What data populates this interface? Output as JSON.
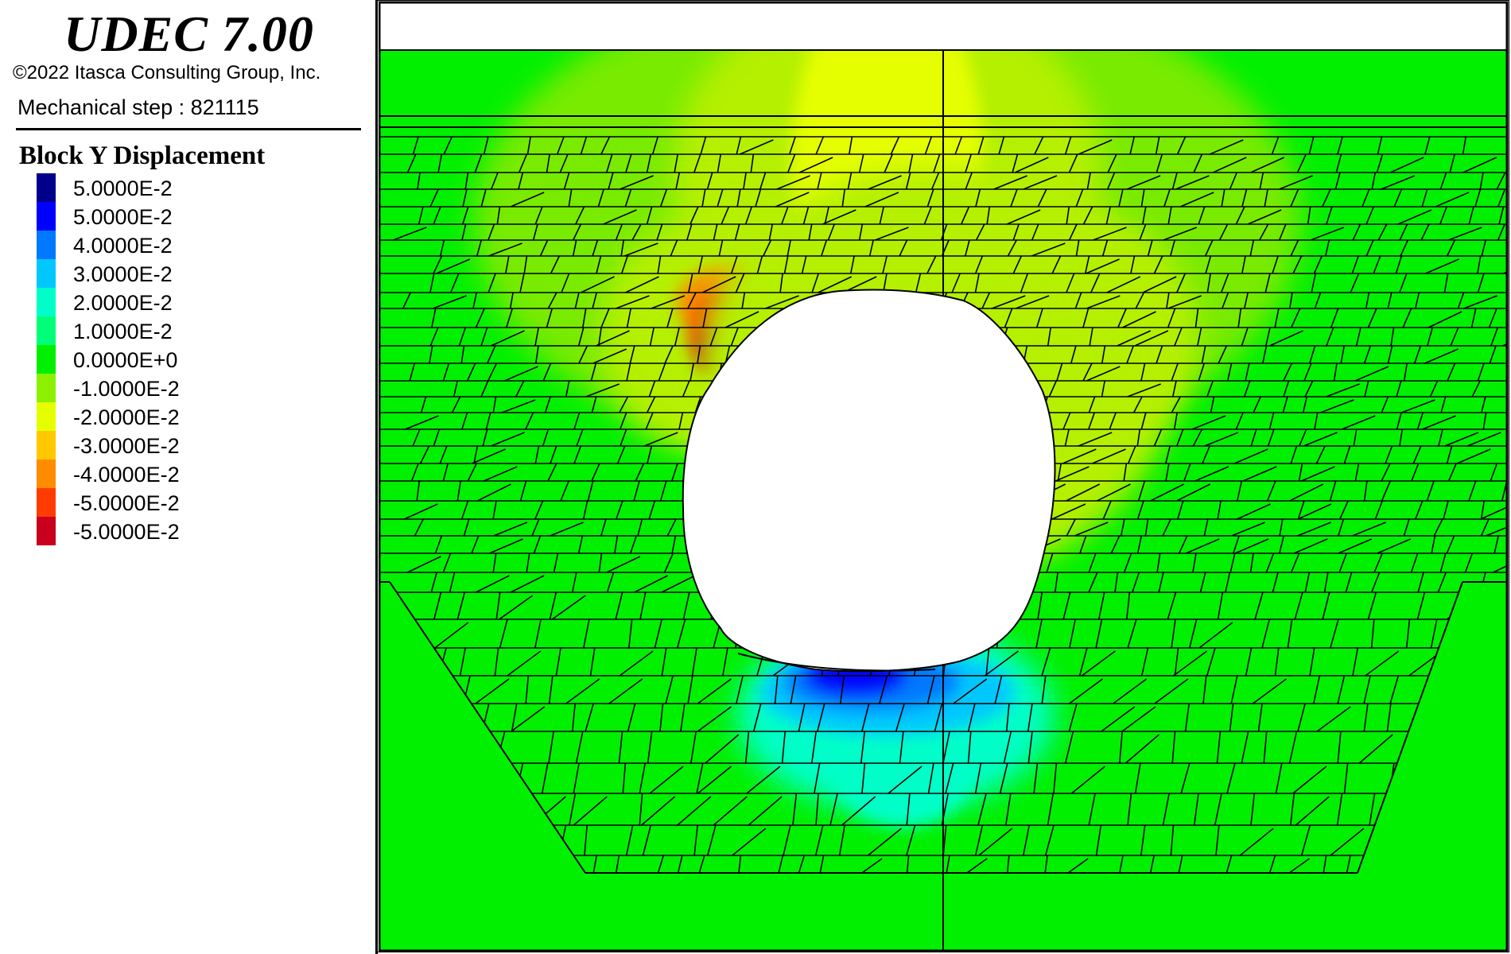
{
  "panel": {
    "app_title": "UDEC 7.00",
    "copyright": "©2022 Itasca Consulting Group, Inc.",
    "step": "Mechanical step : 821115"
  },
  "legend": {
    "title": "Block Y Displacement",
    "items": [
      {
        "label": "5.0000E-2",
        "color": "#00008b"
      },
      {
        "label": "5.0000E-2",
        "color": "#0000ff"
      },
      {
        "label": "4.0000E-2",
        "color": "#0078ff"
      },
      {
        "label": "3.0000E-2",
        "color": "#00c8ff"
      },
      {
        "label": "2.0000E-2",
        "color": "#00ffc8"
      },
      {
        "label": "1.0000E-2",
        "color": "#00ff78"
      },
      {
        "label": "0.0000E+0",
        "color": "#00f000"
      },
      {
        "label": "-1.0000E-2",
        "color": "#8cf000"
      },
      {
        "label": "-2.0000E-2",
        "color": "#e6ff00"
      },
      {
        "label": "-3.0000E-2",
        "color": "#ffc800"
      },
      {
        "label": "-4.0000E-2",
        "color": "#ff8c00"
      },
      {
        "label": "-5.0000E-2",
        "color": "#ff3c00"
      },
      {
        "label": "-5.0000E-2",
        "color": "#c8001e"
      }
    ]
  }
}
